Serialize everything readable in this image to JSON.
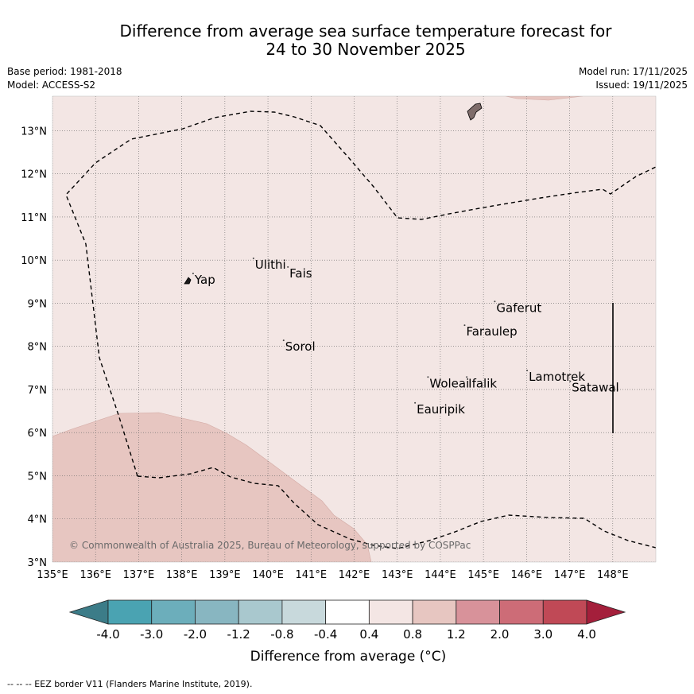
{
  "title": {
    "line1": "Difference from average sea surface temperature forecast for",
    "line2": "24 to 30 November 2025"
  },
  "meta": {
    "base_period": "Base period: 1981-2018",
    "model": "Model: ACCESS-S2",
    "model_run": "Model run: 17/11/2025",
    "issued": "Issued: 19/11/2025"
  },
  "map": {
    "lon_range": [
      135,
      149
    ],
    "lat_range": [
      3,
      13.8
    ],
    "lon_ticks": [
      "135°E",
      "136°E",
      "137°E",
      "138°E",
      "139°E",
      "140°E",
      "141°E",
      "142°E",
      "143°E",
      "144°E",
      "145°E",
      "146°E",
      "147°E",
      "148°E"
    ],
    "lat_ticks": [
      "3°N",
      "4°N",
      "5°N",
      "6°N",
      "7°N",
      "8°N",
      "9°N",
      "10°N",
      "11°N",
      "12°N",
      "13°N"
    ],
    "background_anomaly_class": "0.4 to 0.8",
    "background_color": "#f3e6e4",
    "warm_patch_class": "0.8 to 1.2",
    "warm_patch_color": "#e7c6c1",
    "copyright": "© Commonwealth of Australia 2025, Bureau of Meteorology, supported by COSPPac",
    "places": [
      {
        "name": "Yap",
        "lon": 138.3,
        "lat": 9.45
      },
      {
        "name": "Ulithi",
        "lon": 139.7,
        "lat": 9.8
      },
      {
        "name": "Fais",
        "lon": 140.5,
        "lat": 9.6
      },
      {
        "name": "Sorol",
        "lon": 140.4,
        "lat": 7.9
      },
      {
        "name": "Gaferut",
        "lon": 145.3,
        "lat": 8.8
      },
      {
        "name": "Faraulep",
        "lon": 144.6,
        "lat": 8.25
      },
      {
        "name": "Woleai",
        "lon": 143.75,
        "lat": 7.05
      },
      {
        "name": "Ifalik",
        "lon": 144.65,
        "lat": 7.05
      },
      {
        "name": "Lamotrek",
        "lon": 146.05,
        "lat": 7.2
      },
      {
        "name": "Satawal",
        "lon": 147.05,
        "lat": 6.95
      },
      {
        "name": "Eauripik",
        "lon": 143.45,
        "lat": 6.45
      }
    ]
  },
  "colorbar": {
    "title": "Difference from average (°C)",
    "tick_labels": [
      "-4.0",
      "-3.0",
      "-2.0",
      "-1.2",
      "-0.8",
      "-0.4",
      "0.4",
      "0.8",
      "1.2",
      "2.0",
      "3.0",
      "4.0"
    ],
    "low_extend_color": "#3c7c88",
    "colors": [
      "#4aa3b2",
      "#6caebb",
      "#88b6c1",
      "#a9c8ce",
      "#c8d9dc",
      "#ffffff",
      "#f4e6e4",
      "#e7c6c1",
      "#d8929a",
      "#cd6c77",
      "#c04956"
    ],
    "high_extend_color": "#a41f3b"
  },
  "footnote": "-- -- -- EEZ border V11 (Flanders Marine Institute, 2019)."
}
